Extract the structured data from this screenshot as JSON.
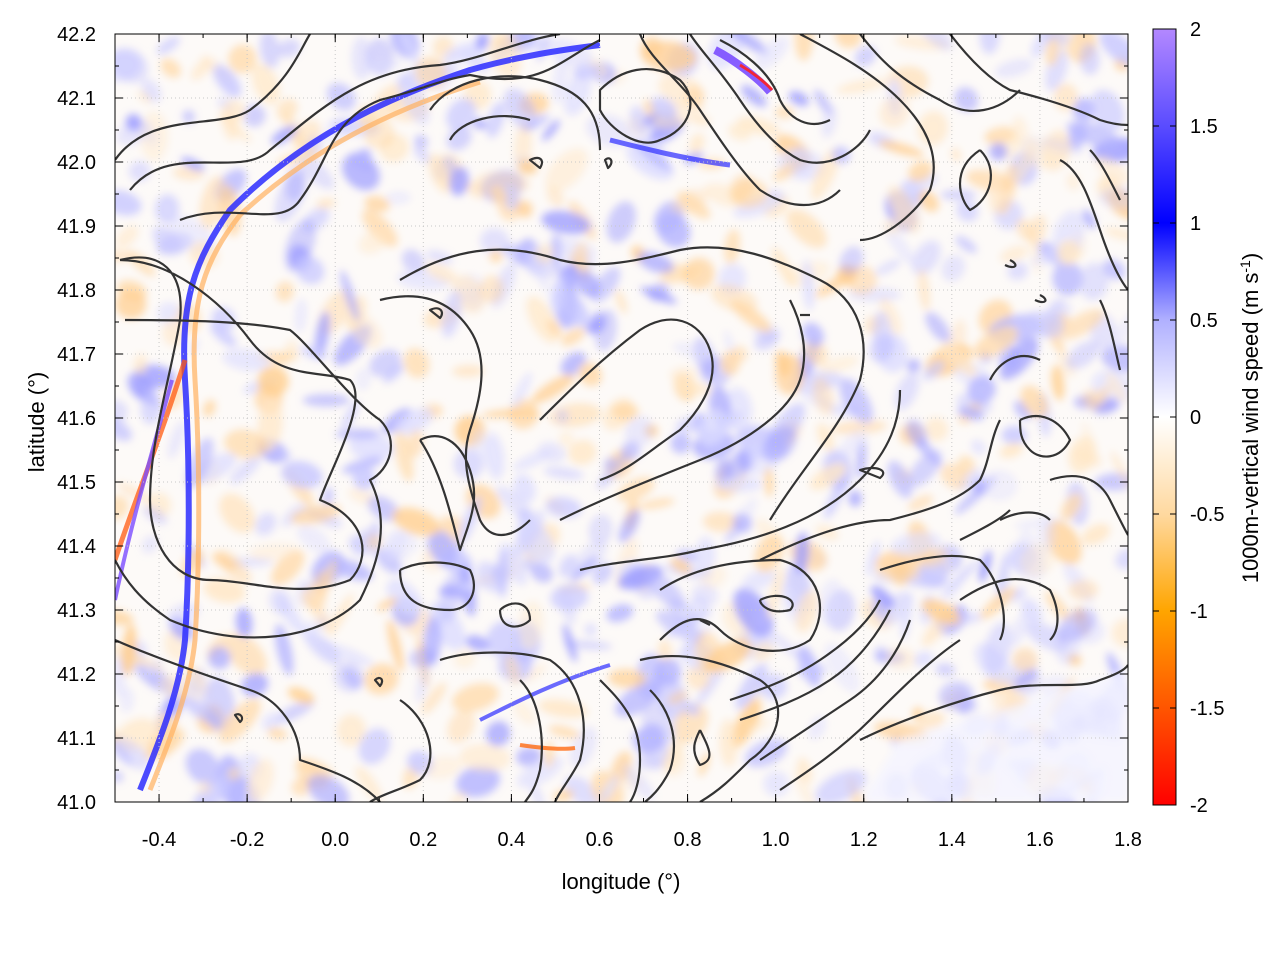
{
  "chart_data": {
    "type": "heatmap",
    "title": "",
    "xlabel": "longitude (°)",
    "ylabel": "latitude (°)",
    "xlim": [
      -0.5,
      1.8
    ],
    "ylim": [
      41.0,
      42.2
    ],
    "x_ticks": [
      "-0.4",
      "-0.2",
      "0.0",
      "0.2",
      "0.4",
      "0.6",
      "0.8",
      "1.0",
      "1.2",
      "1.4",
      "1.6",
      "1.8"
    ],
    "y_ticks": [
      "41.0",
      "41.1",
      "41.2",
      "41.3",
      "41.4",
      "41.5",
      "41.6",
      "41.7",
      "41.8",
      "41.9",
      "42.0",
      "42.1",
      "42.2"
    ],
    "grid": true,
    "colorbar": {
      "label_main": "1000m-vertical wind speed (m s",
      "label_sup": "-1",
      "label_end": ")",
      "range": [
        -2,
        2
      ],
      "ticks": [
        "2",
        "1.5",
        "1",
        "0.5",
        "0",
        "-0.5",
        "-1",
        "-1.5",
        "-2"
      ],
      "colors": {
        "max": "#b388ff",
        "high": "#0000ff",
        "zero": "#ffffff",
        "low": "#ffa500",
        "min": "#ff0000"
      }
    },
    "overlay": "terrain contour lines (black)",
    "contour_color": "#333333"
  }
}
